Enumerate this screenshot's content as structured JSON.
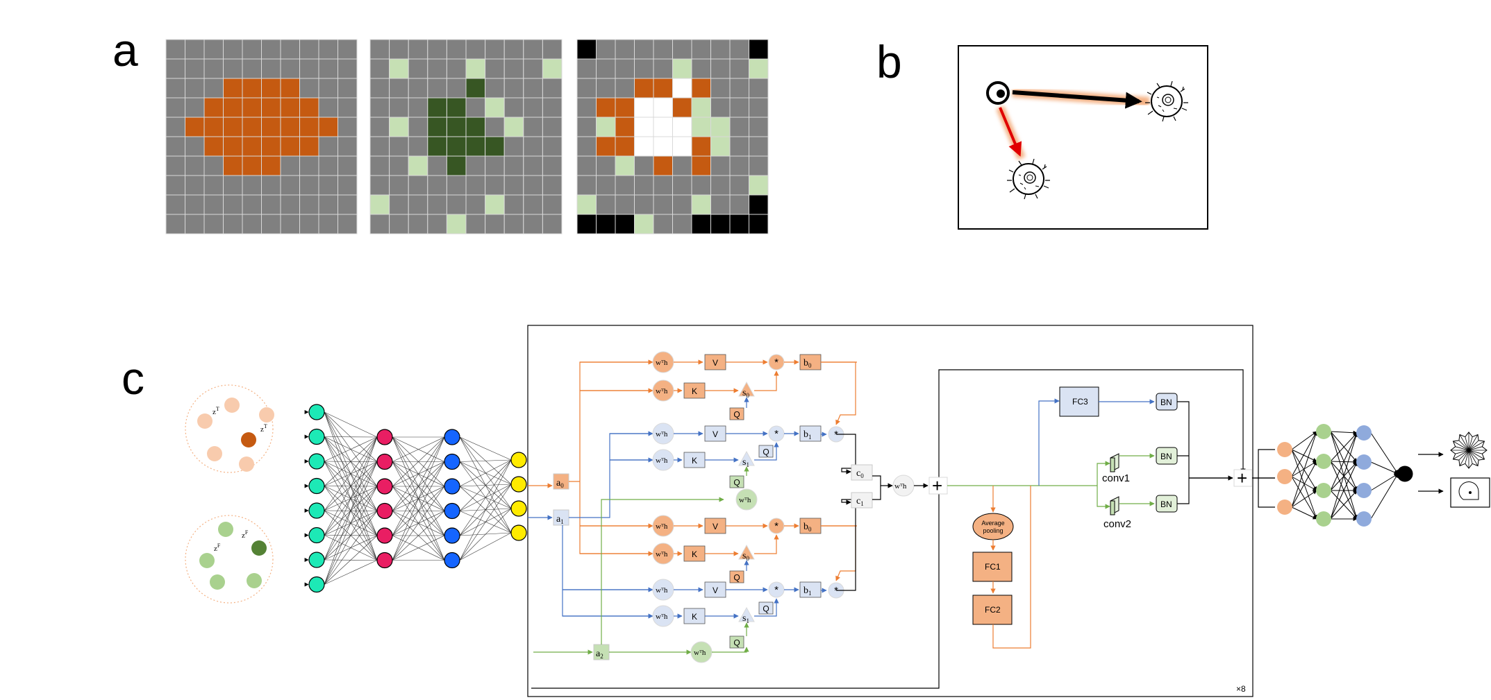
{
  "panel_labels": {
    "a": "a",
    "b": "b",
    "c": "c"
  },
  "colors": {
    "grid_gray": "#808080",
    "orange": "#c55a11",
    "dark_green": "#375623",
    "light_green": "#c6e0b4",
    "black": "#000000",
    "white": "#ffffff",
    "path_orange": "#ed7d31",
    "path_blue": "#4472c4",
    "path_green": "#70ad47",
    "node_teal": "#1de9b6",
    "node_pink": "#e91e63",
    "node_blue": "#1565ff",
    "node_yellow": "#ffeb00",
    "box_orange": "#f4b183",
    "box_blue": "#dae3f3",
    "box_green": "#c5e0b4"
  },
  "panel_a": {
    "legend": "0=gray 1=orange 2=dark-green 3=light-green 4=black 5=white",
    "grid1": [
      "0000000000",
      "0000000000",
      "0001111000",
      "0011111100",
      "0111111110",
      "0011111100",
      "0001110000",
      "0000000000",
      "0000000000",
      "0000000000"
    ],
    "grid2": [
      "0000000000",
      "0300030003",
      "0000020000",
      "0002203000",
      "0302220300",
      "0002222000",
      "0030200000",
      "0000000000",
      "3000003000",
      "0000300000"
    ],
    "grid3": [
      "4000000004",
      "0000030003",
      "0001151000",
      "0115513000",
      "0315553300",
      "0115551300",
      "0030101000",
      "0000000003",
      "3000003004",
      "4443004444"
    ]
  },
  "panel_b": {
    "icons": [
      "eye-icon",
      "cell-icon",
      "cell-icon"
    ]
  },
  "panel_c": {
    "latent_labels": {
      "top": "z",
      "top_sup": "T",
      "bottom": "z",
      "bottom_sup": "F"
    },
    "mlp_layers": [
      {
        "count": 8,
        "color": "#1de9b6"
      },
      {
        "count": 6,
        "color": "#e91e63"
      },
      {
        "count": 6,
        "color": "#1565ff"
      },
      {
        "count": 4,
        "color": "#ffeb00"
      }
    ],
    "block": {
      "wth": "wᵀh",
      "V": "V",
      "K": "K",
      "Q": "Q",
      "s0": "s",
      "s0_sub": "0",
      "s1": "s",
      "s1_sub": "1",
      "b0": "b",
      "b0_sub": "0",
      "b1": "b",
      "b1_sub": "1",
      "c0": "c",
      "c0_sub": "0",
      "c1": "c",
      "c1_sub": "1",
      "a0": "a",
      "a0_sub": "0",
      "a1": "a",
      "a1_sub": "1",
      "a2": "a",
      "a2_sub": "2",
      "mul": "*",
      "plus": "+",
      "avg_pool_line1": "Average",
      "avg_pool_line2": "pooling",
      "fc1": "FC1",
      "fc2": "FC2",
      "fc3": "FC3",
      "bn": "BN",
      "conv1": "conv1",
      "conv2": "conv2",
      "repeat": "×8"
    },
    "output_mlp_layers": [
      {
        "count": 3,
        "color": "#f4b183"
      },
      {
        "count": 4,
        "color": "#a9d18e"
      },
      {
        "count": 4,
        "color": "#8faadc"
      },
      {
        "count": 1,
        "color": "#000000"
      }
    ],
    "output_icons": [
      "circular-fingerprint-icon",
      "map-icon"
    ]
  }
}
